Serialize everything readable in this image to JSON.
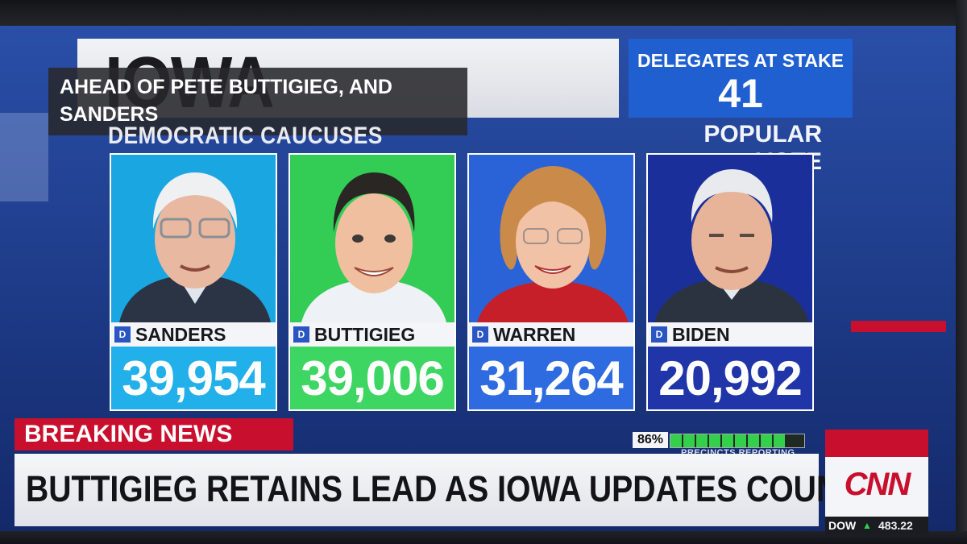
{
  "header": {
    "state": "IOWA",
    "overlay_caption": "AHEAD OF PETE BUTTIGIEG, AND SANDERS",
    "event": "DEMOCRATIC CAUCUSES",
    "delegates_label": "DELEGATES AT STAKE",
    "delegates_value": "41",
    "metric_label": "POPULAR VOTE"
  },
  "candidates": [
    {
      "name": "SANDERS",
      "party": "D",
      "votes": "39,954",
      "bg": "#1aa6e0",
      "vote_bg": "#22b0ea",
      "vote_color": "#ffffff"
    },
    {
      "name": "BUTTIGIEG",
      "party": "D",
      "votes": "39,006",
      "bg": "#33cc55",
      "vote_bg": "#3dd662",
      "vote_color": "#ffffff"
    },
    {
      "name": "WARREN",
      "party": "D",
      "votes": "31,264",
      "bg": "#2a63d8",
      "vote_bg": "#2f6be0",
      "vote_color": "#ffffff"
    },
    {
      "name": "BIDEN",
      "party": "D",
      "votes": "20,992",
      "bg": "#1a2f9a",
      "vote_bg": "#1f35a8",
      "vote_color": "#ffffff"
    }
  ],
  "precincts": {
    "percent": "86%",
    "fraction": 0.86,
    "label": "PRECINCTS REPORTING"
  },
  "breaking": "BREAKING NEWS",
  "headline": "BUTTIGIEG RETAINS LEAD AS IOWA UPDATES COUNT",
  "network": "CNN",
  "ticker": {
    "index": "DOW",
    "direction": "up",
    "value": "483.22"
  }
}
